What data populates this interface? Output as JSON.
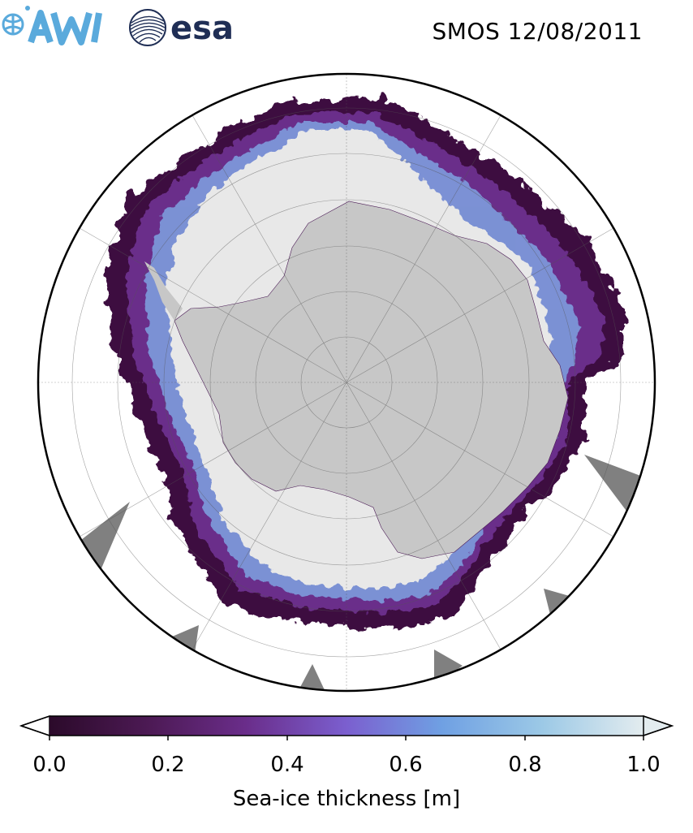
{
  "header": {
    "title": "SMOS 12/08/2011",
    "logos": [
      {
        "name": "awi-logo",
        "icon": "awi-logo",
        "color": "#5aaadc"
      },
      {
        "name": "esa-logo",
        "icon": "esa-logo",
        "text": "esa",
        "color": "#1f2e55"
      }
    ]
  },
  "map": {
    "projection": "south-polar-stereographic",
    "land_color": "#c7c7c7",
    "ocean_color": "#ffffff",
    "no_data_color": "#808080",
    "thick_ice_color": "#e8e8e8",
    "gridlines": true
  },
  "colorbar": {
    "label": "Sea-ice thickness [m]",
    "ticks": [
      "0.0",
      "0.2",
      "0.4",
      "0.6",
      "0.8",
      "1.0"
    ],
    "range": [
      0.0,
      1.0
    ],
    "extend": "both",
    "colormap": [
      "#2b0a2a",
      "#4d1a55",
      "#6a2d8a",
      "#7b5fcf",
      "#6fa0e3",
      "#9cc9e6",
      "#e3ecef"
    ]
  }
}
